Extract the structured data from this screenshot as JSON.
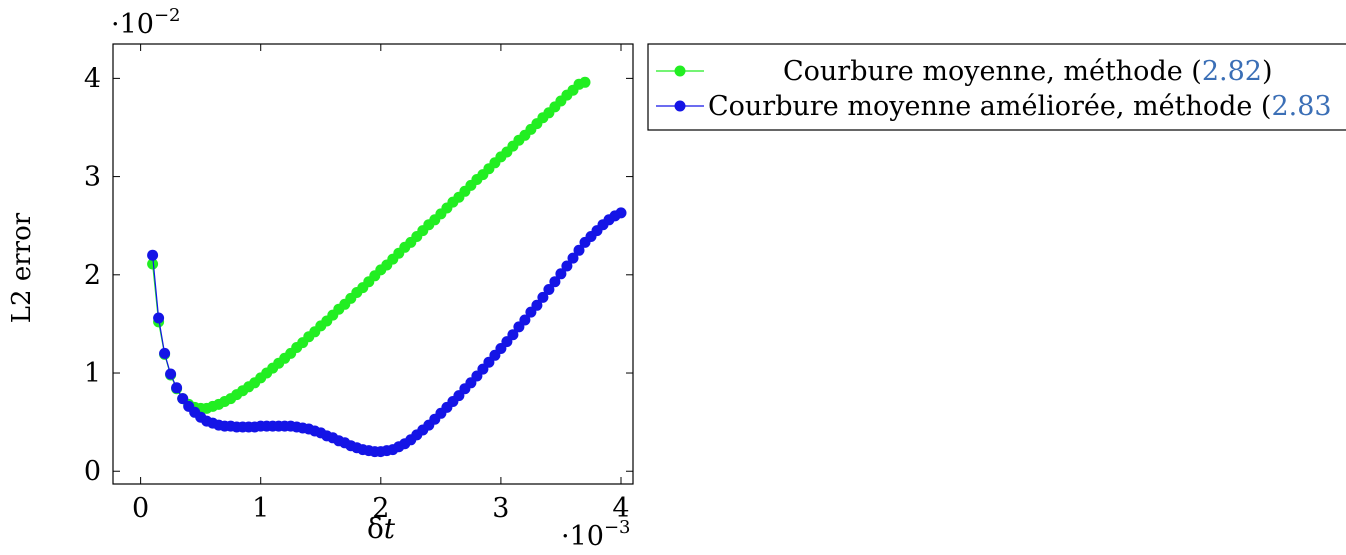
{
  "chart_data": {
    "type": "line",
    "xlabel_prefix": "δ",
    "xlabel_var": "t",
    "ylabel": "L2 error",
    "x_multiplier": {
      "base": "·10",
      "exp": "−3"
    },
    "y_multiplier": {
      "base": "·10",
      "exp": "−2"
    },
    "xlim": [
      -0.00023,
      0.0041
    ],
    "ylim": [
      -0.0013,
      0.0435
    ],
    "x_ticks": [
      0,
      0.001,
      0.002,
      0.003,
      0.004
    ],
    "x_tick_labels": [
      "0",
      "1",
      "2",
      "3",
      "4"
    ],
    "y_ticks": [
      0,
      0.01,
      0.02,
      0.03,
      0.04
    ],
    "y_tick_labels": [
      "0",
      "1",
      "2",
      "3",
      "4"
    ],
    "grid": false,
    "legend_position": "outside-right-top",
    "series": [
      {
        "name_text": "Courbure moyenne, méthode (",
        "name_ref": "2.82",
        "name_end": ")",
        "color": "#22ee22",
        "x": [
          0.0001,
          0.00015,
          0.0002,
          0.00025,
          0.0003,
          0.00035,
          0.0004,
          0.00045,
          0.0005,
          0.00055,
          0.0006,
          0.00065,
          0.0007,
          0.00075,
          0.0008,
          0.00085,
          0.0009,
          0.00095,
          0.001,
          0.00105,
          0.0011,
          0.00115,
          0.0012,
          0.00125,
          0.0013,
          0.00135,
          0.0014,
          0.00145,
          0.0015,
          0.00155,
          0.0016,
          0.00165,
          0.0017,
          0.00175,
          0.0018,
          0.00185,
          0.0019,
          0.00195,
          0.002,
          0.00205,
          0.0021,
          0.00215,
          0.0022,
          0.00225,
          0.0023,
          0.00235,
          0.0024,
          0.00245,
          0.0025,
          0.00255,
          0.0026,
          0.00265,
          0.0027,
          0.00275,
          0.0028,
          0.00285,
          0.0029,
          0.00295,
          0.003,
          0.00305,
          0.0031,
          0.00315,
          0.0032,
          0.00325,
          0.0033,
          0.00335,
          0.0034,
          0.00345,
          0.0035,
          0.00355,
          0.0036,
          0.00365,
          0.0037
        ],
        "y": [
          0.0211,
          0.0152,
          0.0119,
          0.0098,
          0.0084,
          0.0074,
          0.0068,
          0.0065,
          0.0064,
          0.0064,
          0.0066,
          0.0068,
          0.0071,
          0.0074,
          0.0078,
          0.0082,
          0.0086,
          0.009,
          0.0095,
          0.01,
          0.0105,
          0.011,
          0.0115,
          0.012,
          0.0126,
          0.0131,
          0.0137,
          0.0142,
          0.0148,
          0.0153,
          0.0159,
          0.0165,
          0.017,
          0.0176,
          0.0182,
          0.0187,
          0.0193,
          0.0199,
          0.0205,
          0.021,
          0.0216,
          0.0222,
          0.0228,
          0.0233,
          0.0239,
          0.0245,
          0.0251,
          0.0256,
          0.0262,
          0.0268,
          0.0274,
          0.0279,
          0.0285,
          0.0291,
          0.0297,
          0.0302,
          0.0308,
          0.0314,
          0.032,
          0.0325,
          0.0331,
          0.0337,
          0.0342,
          0.0348,
          0.0354,
          0.036,
          0.0365,
          0.0371,
          0.0377,
          0.0383,
          0.0388,
          0.0394,
          0.0396
        ]
      },
      {
        "name_text": "Courbure moyenne améliorée, méthode (",
        "name_ref": "2.83",
        "name_end": "",
        "color": "#1414e6",
        "x": [
          0.0001,
          0.00015,
          0.0002,
          0.00025,
          0.0003,
          0.00035,
          0.0004,
          0.00045,
          0.0005,
          0.00055,
          0.0006,
          0.00065,
          0.0007,
          0.00075,
          0.0008,
          0.00085,
          0.0009,
          0.00095,
          0.001,
          0.00105,
          0.0011,
          0.00115,
          0.0012,
          0.00125,
          0.0013,
          0.00135,
          0.0014,
          0.00145,
          0.0015,
          0.00155,
          0.0016,
          0.00165,
          0.0017,
          0.00175,
          0.0018,
          0.00185,
          0.0019,
          0.00195,
          0.002,
          0.00205,
          0.0021,
          0.00215,
          0.0022,
          0.00225,
          0.0023,
          0.00235,
          0.0024,
          0.00245,
          0.0025,
          0.00255,
          0.0026,
          0.00265,
          0.0027,
          0.00275,
          0.0028,
          0.00285,
          0.0029,
          0.00295,
          0.003,
          0.00305,
          0.0031,
          0.00315,
          0.0032,
          0.00325,
          0.0033,
          0.00335,
          0.0034,
          0.00345,
          0.0035,
          0.00355,
          0.0036,
          0.00365,
          0.0037,
          0.00375,
          0.0038,
          0.00385,
          0.0039,
          0.00395,
          0.004
        ],
        "y": [
          0.022,
          0.0156,
          0.012,
          0.0099,
          0.0085,
          0.0074,
          0.0066,
          0.006,
          0.0055,
          0.0051,
          0.0049,
          0.0047,
          0.0046,
          0.0046,
          0.0045,
          0.0045,
          0.0045,
          0.0045,
          0.0046,
          0.0046,
          0.0046,
          0.0046,
          0.0046,
          0.0046,
          0.0045,
          0.0044,
          0.0043,
          0.0041,
          0.0039,
          0.0036,
          0.0034,
          0.0031,
          0.0029,
          0.0026,
          0.0024,
          0.0022,
          0.0021,
          0.002,
          0.002,
          0.0021,
          0.0022,
          0.0025,
          0.0028,
          0.0032,
          0.0037,
          0.0042,
          0.0047,
          0.0053,
          0.0059,
          0.0065,
          0.0071,
          0.0077,
          0.0084,
          0.009,
          0.0097,
          0.0104,
          0.0111,
          0.0118,
          0.0125,
          0.0132,
          0.0139,
          0.0147,
          0.0154,
          0.0162,
          0.0169,
          0.0177,
          0.0185,
          0.0193,
          0.0201,
          0.0209,
          0.0217,
          0.0225,
          0.0233,
          0.0239,
          0.0245,
          0.0251,
          0.0256,
          0.026,
          0.0263
        ]
      }
    ]
  }
}
